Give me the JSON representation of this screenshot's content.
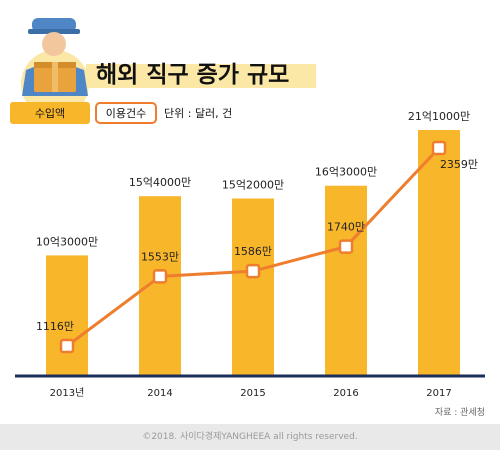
{
  "title": "해외 직구 증가 규모",
  "legend": {
    "bar_label": "수입액",
    "line_label": "이용건수",
    "unit_note": "단위 : 달러, 건"
  },
  "source": "자료 : 관세청",
  "footer": "©2018. 사이다경제YANGHEEA all rights reserved.",
  "colors": {
    "bar": "#f8b62b",
    "line": "#ef7d2e",
    "banner": "#fbe7a6",
    "axis": "#1b2d5b",
    "text": "#222222"
  },
  "chart_data": {
    "type": "bar",
    "categories": [
      "2013년",
      "2014",
      "2015",
      "2016",
      "2017"
    ],
    "series": [
      {
        "name": "수입액",
        "type": "bar",
        "values": [
          1030000000,
          1540000000,
          1520000000,
          1630000000,
          2110000000
        ],
        "labels": [
          "10억3000만",
          "15억4000만",
          "15억2000만",
          "16억3000만",
          "21억1000만"
        ]
      },
      {
        "name": "이용건수",
        "type": "line",
        "values": [
          11160000,
          15530000,
          15860000,
          17400000,
          23590000
        ],
        "labels": [
          "1116만",
          "1553만",
          "1586만",
          "1740만",
          "2359만"
        ]
      }
    ]
  }
}
